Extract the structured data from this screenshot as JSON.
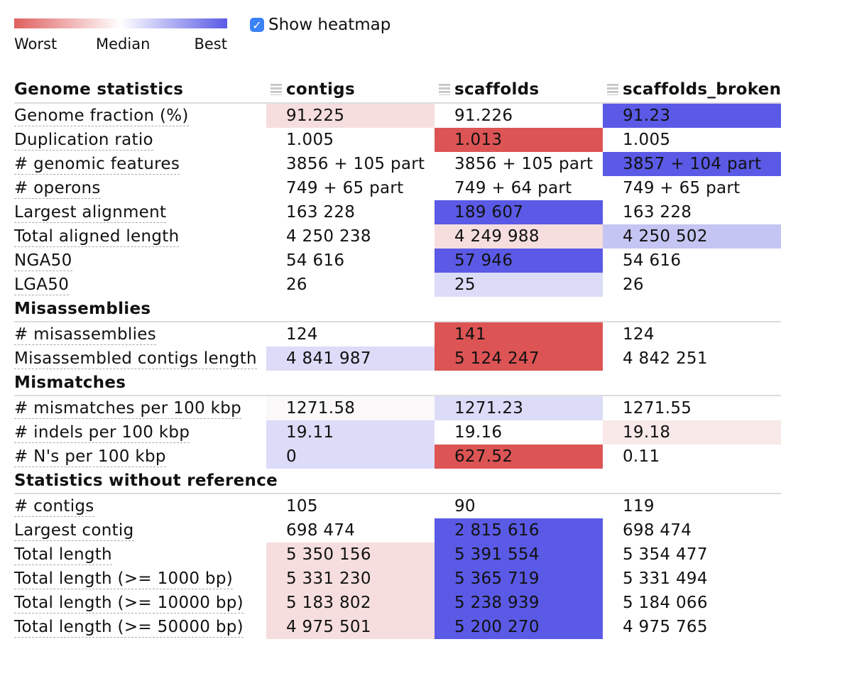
{
  "legend": {
    "worst": "Worst",
    "median": "Median",
    "best": "Best"
  },
  "heatmap_toggle": {
    "label": "Show heatmap",
    "checked": true
  },
  "colors": {
    "worst": "#e06060",
    "median": "#ffffff",
    "best": "#5a5ae6"
  },
  "table": {
    "title": "Genome statistics",
    "columns": [
      "contigs",
      "scaffolds",
      "scaffolds_broken"
    ],
    "sections": [
      {
        "name": "",
        "rows": [
          {
            "label": "Genome fraction (%)",
            "values": [
              "91.225",
              "91.226",
              "91.23"
            ],
            "colors": [
              "#f6dede",
              "",
              "#5a5ae6"
            ]
          },
          {
            "label": "Duplication ratio",
            "values": [
              "1.005",
              "1.013",
              "1.005"
            ],
            "colors": [
              "",
              "#dc5454",
              ""
            ]
          },
          {
            "label": "# genomic features",
            "values": [
              "3856 + 105 part",
              "3856 + 105 part",
              "3857 + 104 part"
            ],
            "colors": [
              "",
              "",
              "#5a5ae6"
            ]
          },
          {
            "label": "# operons",
            "values": [
              "749 + 65 part",
              "749 + 64 part",
              "749 + 65 part"
            ],
            "colors": [
              "",
              "",
              ""
            ]
          },
          {
            "label": "Largest alignment",
            "values": [
              "163 228",
              "189 607",
              "163 228"
            ],
            "colors": [
              "",
              "#5a5ae6",
              ""
            ]
          },
          {
            "label": "Total aligned length",
            "values": [
              "4 250 238",
              "4 249 988",
              "4 250 502"
            ],
            "colors": [
              "",
              "#f6dede",
              "#c5c5f3"
            ]
          },
          {
            "label": "NGA50",
            "values": [
              "54 616",
              "57 946",
              "54 616"
            ],
            "colors": [
              "",
              "#5a5ae6",
              ""
            ]
          },
          {
            "label": "LGA50",
            "values": [
              "26",
              "25",
              "26"
            ],
            "colors": [
              "",
              "#dcdcf8",
              ""
            ]
          }
        ]
      },
      {
        "name": "Misassemblies",
        "rows": [
          {
            "label": "# misassemblies",
            "values": [
              "124",
              "141",
              "124"
            ],
            "colors": [
              "",
              "#dc5454",
              ""
            ]
          },
          {
            "label": "Misassembled contigs length",
            "values": [
              "4 841 987",
              "5 124 247",
              "4 842 251"
            ],
            "colors": [
              "#dcdcf8",
              "#dc5454",
              ""
            ]
          }
        ]
      },
      {
        "name": "Mismatches",
        "rows": [
          {
            "label": "# mismatches per 100 kbp",
            "values": [
              "1271.58",
              "1271.23",
              "1271.55"
            ],
            "colors": [
              "#faf8f8",
              "#dcdcf8",
              ""
            ]
          },
          {
            "label": "# indels per 100 kbp",
            "values": [
              "19.11",
              "19.16",
              "19.18"
            ],
            "colors": [
              "#dcdcf8",
              "",
              "#f8e8e8"
            ]
          },
          {
            "label": "# N's per 100 kbp",
            "values": [
              "0",
              "627.52",
              "0.11"
            ],
            "colors": [
              "#dcdcf8",
              "#dc5454",
              ""
            ]
          }
        ]
      },
      {
        "name": "Statistics without reference",
        "rows": [
          {
            "label": "# contigs",
            "values": [
              "105",
              "90",
              "119"
            ],
            "colors": [
              "",
              "",
              ""
            ]
          },
          {
            "label": "Largest contig",
            "values": [
              "698 474",
              "2 815 616",
              "698 474"
            ],
            "colors": [
              "",
              "#5a5ae6",
              ""
            ]
          },
          {
            "label": "Total length",
            "values": [
              "5 350 156",
              "5 391 554",
              "5 354 477"
            ],
            "colors": [
              "#f6dede",
              "#5a5ae6",
              ""
            ]
          },
          {
            "label": "Total length (>= 1000 bp)",
            "values": [
              "5 331 230",
              "5 365 719",
              "5 331 494"
            ],
            "colors": [
              "#f6dede",
              "#5a5ae6",
              ""
            ]
          },
          {
            "label": "Total length (>= 10000 bp)",
            "values": [
              "5 183 802",
              "5 238 939",
              "5 184 066"
            ],
            "colors": [
              "#f6dede",
              "#5a5ae6",
              ""
            ]
          },
          {
            "label": "Total length (>= 50000 bp)",
            "values": [
              "4 975 501",
              "5 200 270",
              "4 975 765"
            ],
            "colors": [
              "#f6dede",
              "#5a5ae6",
              ""
            ]
          }
        ]
      }
    ]
  }
}
